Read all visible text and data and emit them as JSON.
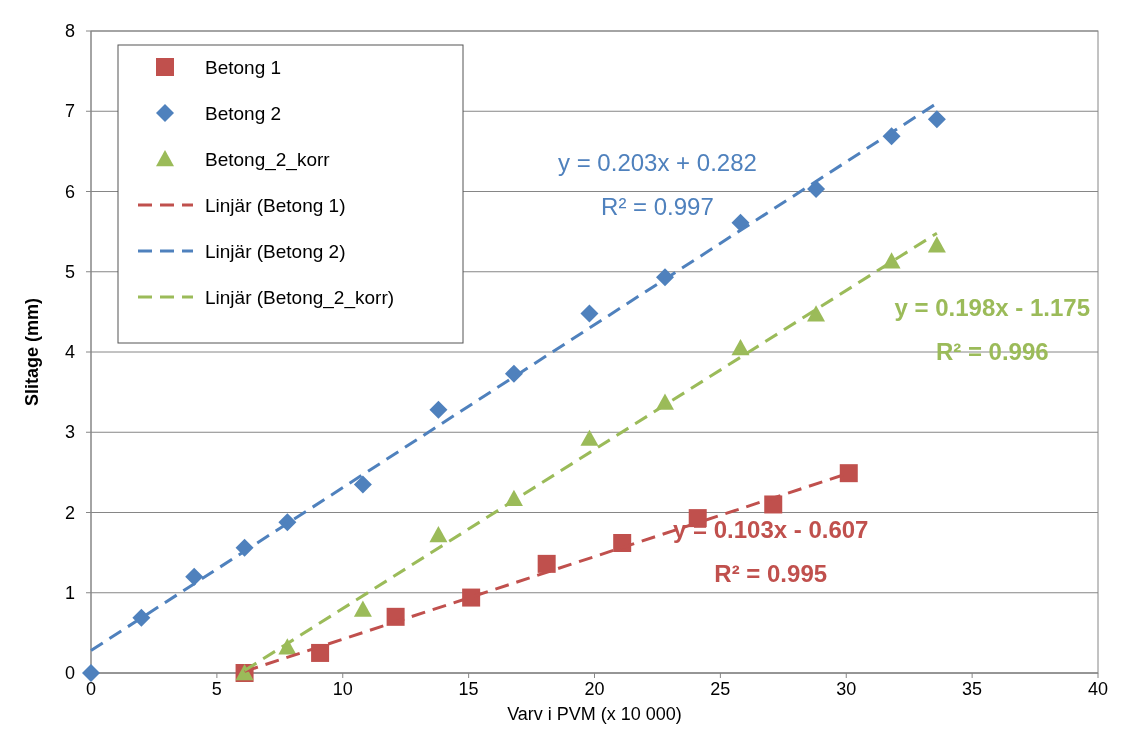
{
  "chart_data": {
    "type": "scatter",
    "xlabel": "Varv i PVM (x 10 000)",
    "ylabel": "Slitage (mm)",
    "xlim": [
      0,
      40
    ],
    "xticks": [
      0,
      5,
      10,
      15,
      20,
      25,
      30,
      35,
      40
    ],
    "ylim": [
      0,
      8
    ],
    "yticks": [
      0,
      1,
      2,
      3,
      4,
      5,
      6,
      7,
      8
    ],
    "grid": "y",
    "legend": "top left",
    "series": [
      {
        "name": "Betong 1",
        "color": "#c0504d",
        "marker": "square",
        "x": [
          6.1,
          9.1,
          12.1,
          15.1,
          18.1,
          21.1,
          24.1,
          27.1,
          30.1
        ],
        "values": [
          0,
          0.25,
          0.7,
          0.94,
          1.36,
          1.62,
          1.93,
          2.1,
          2.49
        ]
      },
      {
        "name": "Betong 2",
        "color": "#4f81bd",
        "marker": "diamond",
        "x": [
          0,
          2,
          4.1,
          6.1,
          7.8,
          10.8,
          13.8,
          16.8,
          19.8,
          22.8,
          25.8,
          28.8,
          31.8,
          33.6
        ],
        "values": [
          0,
          0.69,
          1.2,
          1.56,
          1.88,
          2.35,
          3.28,
          3.73,
          4.48,
          4.93,
          5.61,
          6.03,
          6.69,
          6.9
        ]
      },
      {
        "name": "Betong_2_korr",
        "color": "#9bbb59",
        "marker": "triangle",
        "x": [
          6.1,
          7.8,
          10.8,
          13.8,
          16.8,
          19.8,
          22.8,
          25.8,
          28.8,
          31.8,
          33.6
        ],
        "values": [
          0,
          0.32,
          0.79,
          1.72,
          2.17,
          2.92,
          3.37,
          4.05,
          4.47,
          5.13,
          5.33
        ]
      },
      {
        "name": "Linjär (Betong 1)",
        "type": "line",
        "line_style": "dashed",
        "marker": "none",
        "color": "#c0504d",
        "x": [
          6.1,
          30.1
        ],
        "values": [
          0.02,
          2.49
        ]
      },
      {
        "name": "Linjär (Betong 2)",
        "type": "line",
        "line_style": "dashed",
        "marker": "none",
        "color": "#4f81bd",
        "x": [
          0,
          33.6
        ],
        "values": [
          0.28,
          7.1
        ]
      },
      {
        "name": "Linjär (Betong_2_korr)",
        "type": "line",
        "line_style": "dashed",
        "marker": "none",
        "color": "#9bbb59",
        "x": [
          6.1,
          33.6
        ],
        "values": [
          0.03,
          5.48
        ]
      }
    ],
    "annotations": [
      "y = 0.103x - 0.607",
      "R² = 0.995",
      "y = 0.203x + 0.282",
      "R² = 0.997",
      "y = 0.198x - 1.175",
      "R² = 0.996"
    ]
  }
}
